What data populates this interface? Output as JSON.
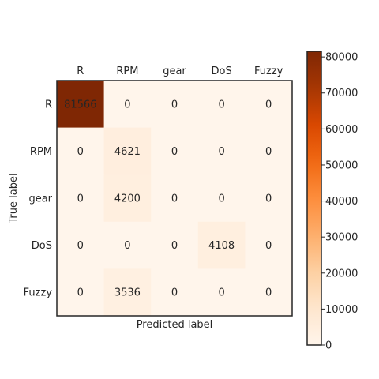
{
  "chart_data": {
    "type": "heatmap",
    "title": "",
    "xlabel": "Predicted label",
    "ylabel": "True label",
    "x_categories": [
      "R",
      "RPM",
      "gear",
      "DoS",
      "Fuzzy"
    ],
    "y_categories": [
      "R",
      "RPM",
      "gear",
      "DoS",
      "Fuzzy"
    ],
    "values": [
      [
        81566,
        0,
        0,
        0,
        0
      ],
      [
        0,
        4621,
        0,
        0,
        0
      ],
      [
        0,
        4200,
        0,
        0,
        0
      ],
      [
        0,
        0,
        0,
        4108,
        0
      ],
      [
        0,
        3536,
        0,
        0,
        0
      ]
    ],
    "colormap": "Oranges",
    "colorbar": {
      "range": [
        0,
        81566
      ],
      "ticks": [
        0,
        10000,
        20000,
        30000,
        40000,
        50000,
        60000,
        70000,
        80000
      ],
      "tick_labels": [
        "0",
        "10000",
        "20000",
        "30000",
        "40000",
        "50000",
        "60000",
        "70000",
        "80000"
      ]
    },
    "grid": false,
    "colors": {
      "low": "#fff5eb",
      "high": "#7f2704",
      "frame": "#262626"
    }
  }
}
